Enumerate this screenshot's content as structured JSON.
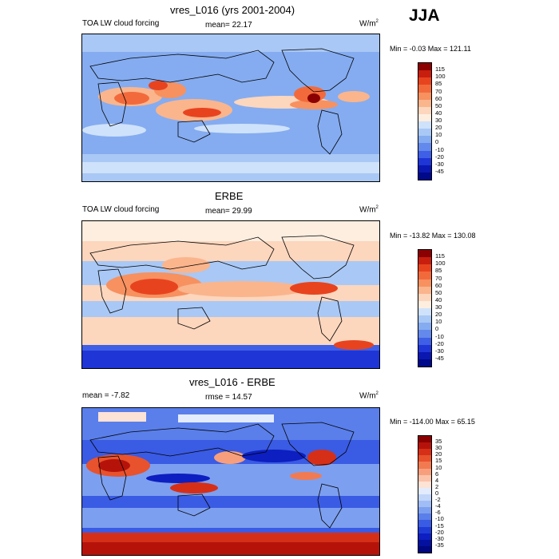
{
  "season": "JJA",
  "panels": [
    {
      "title": "vres_L016 (yrs 2001-2004)",
      "variable": "TOA LW cloud forcing",
      "stat_text": "mean=  22.17",
      "units": "W/m",
      "units_sup": "2",
      "minmax": "Min =  -0.03 Max = 121.11",
      "levels": [
        "115",
        "100",
        "85",
        "70",
        "60",
        "50",
        "40",
        "30",
        "20",
        "10",
        "0",
        "-10",
        "-20",
        "-30",
        "-45"
      ],
      "colors": [
        "#8b0000",
        "#c81e0e",
        "#e8431f",
        "#f26a3c",
        "#f7915f",
        "#fab58d",
        "#fcd6bd",
        "#fdeee0",
        "#cfe2fb",
        "#a9c8f5",
        "#85acf0",
        "#6389ec",
        "#3f5fe6",
        "#1f35d6",
        "#0a17b0",
        "#00098a"
      ]
    },
    {
      "title": "ERBE",
      "variable": "TOA LW cloud forcing",
      "stat_text": "mean=  29.99",
      "units": "W/m",
      "units_sup": "2",
      "minmax": "Min = -13.82 Max = 130.08",
      "levels": [
        "115",
        "100",
        "85",
        "70",
        "60",
        "50",
        "40",
        "30",
        "20",
        "10",
        "0",
        "-10",
        "-20",
        "-30",
        "-45"
      ],
      "colors": [
        "#8b0000",
        "#c81e0e",
        "#e8431f",
        "#f26a3c",
        "#f7915f",
        "#fab58d",
        "#fcd6bd",
        "#fdeee0",
        "#cfe2fb",
        "#a9c8f5",
        "#85acf0",
        "#6389ec",
        "#3f5fe6",
        "#1f35d6",
        "#0a17b0",
        "#00098a"
      ]
    },
    {
      "title": "vres_L016 - ERBE",
      "variable": "mean =  -7.82",
      "stat_text": "rmse =  14.57",
      "units": "W/m",
      "units_sup": "2",
      "minmax": "Min = -114.00 Max =  65.15",
      "levels": [
        "35",
        "30",
        "20",
        "15",
        "10",
        "6",
        "4",
        "2",
        "0",
        "-2",
        "-4",
        "-6",
        "-10",
        "-15",
        "-20",
        "-30",
        "-35"
      ],
      "colors": [
        "#8b0000",
        "#b5130a",
        "#d62f18",
        "#e8522c",
        "#f27a50",
        "#f79f7c",
        "#fbc3aa",
        "#fde2d6",
        "#e3ecfd",
        "#c2d6fa",
        "#a0bdf5",
        "#7d9fef",
        "#5a7fea",
        "#3a5be3",
        "#1f3bd6",
        "#0d1fc0",
        "#04109f",
        "#000780"
      ]
    }
  ]
}
